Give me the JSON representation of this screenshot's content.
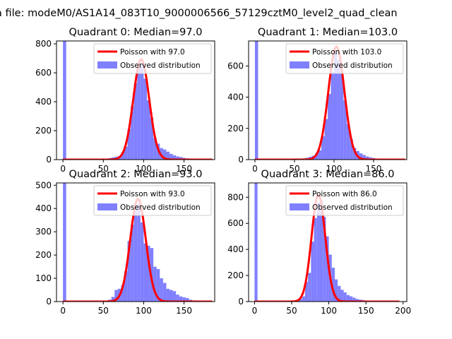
{
  "figure_title": "a file: modeM0/AS1A14_083T10_9000006566_57129cztM0_level2_quad_clean",
  "chart_data": [
    {
      "type": "bar",
      "title": "Quadrant 0: Median=97.0",
      "median": 97.0,
      "xlim": [
        -8,
        188
      ],
      "ylim": [
        0,
        820
      ],
      "xticks": [
        0,
        50,
        100,
        150
      ],
      "yticks": [
        0,
        200,
        400,
        600,
        800
      ],
      "bin_width": 4,
      "zero_spike": 820,
      "bins": [
        [
          56,
          10
        ],
        [
          60,
          15
        ],
        [
          64,
          20
        ],
        [
          68,
          25
        ],
        [
          72,
          50
        ],
        [
          76,
          90
        ],
        [
          80,
          210
        ],
        [
          84,
          370
        ],
        [
          88,
          530
        ],
        [
          92,
          650
        ],
        [
          96,
          660
        ],
        [
          100,
          560
        ],
        [
          104,
          410
        ],
        [
          108,
          290
        ],
        [
          112,
          150
        ],
        [
          116,
          110
        ],
        [
          120,
          80
        ],
        [
          124,
          70
        ],
        [
          128,
          55
        ],
        [
          132,
          40
        ],
        [
          136,
          30
        ],
        [
          140,
          22
        ],
        [
          144,
          18
        ],
        [
          148,
          12
        ],
        [
          152,
          9
        ],
        [
          156,
          7
        ],
        [
          160,
          5
        ],
        [
          164,
          4
        ],
        [
          168,
          3
        ]
      ],
      "poisson_range": [
        0,
        185
      ],
      "legend": {
        "line_label": "Poisson with 97.0",
        "bar_label": "Observed distribution",
        "loc": "upper right"
      },
      "colors": {
        "bars": "#8080ff",
        "line": "#ff0000"
      }
    },
    {
      "type": "bar",
      "title": "Quadrant 1: Median=103.0",
      "median": 103.0,
      "xlim": [
        -8,
        192
      ],
      "ylim": [
        0,
        760
      ],
      "xticks": [
        0,
        50,
        100,
        150
      ],
      "yticks": [
        0,
        200,
        400,
        600
      ],
      "bin_width": 4,
      "zero_spike": 760,
      "bins": [
        [
          60,
          8
        ],
        [
          64,
          12
        ],
        [
          68,
          18
        ],
        [
          72,
          25
        ],
        [
          76,
          40
        ],
        [
          80,
          60
        ],
        [
          84,
          150
        ],
        [
          88,
          260
        ],
        [
          92,
          420
        ],
        [
          96,
          560
        ],
        [
          100,
          690
        ],
        [
          104,
          640
        ],
        [
          108,
          560
        ],
        [
          112,
          380
        ],
        [
          116,
          230
        ],
        [
          120,
          130
        ],
        [
          124,
          75
        ],
        [
          128,
          55
        ],
        [
          132,
          40
        ],
        [
          136,
          30
        ],
        [
          140,
          20
        ],
        [
          144,
          15
        ],
        [
          148,
          10
        ],
        [
          152,
          7
        ],
        [
          156,
          5
        ],
        [
          160,
          4
        ],
        [
          164,
          3
        ]
      ],
      "poisson_range": [
        0,
        190
      ],
      "legend": {
        "line_label": "Poisson with 103.0",
        "bar_label": "Observed distribution",
        "loc": "upper right"
      },
      "colors": {
        "bars": "#8080ff",
        "line": "#ff0000"
      }
    },
    {
      "type": "bar",
      "title": "Quadrant 2: Median=93.0",
      "median": 93.0,
      "xlim": [
        -8,
        188
      ],
      "ylim": [
        0,
        510
      ],
      "xticks": [
        0,
        50,
        100,
        150
      ],
      "yticks": [
        0,
        100,
        200,
        300,
        400,
        500
      ],
      "bin_width": 4,
      "zero_spike": 510,
      "bins": [
        [
          56,
          8
        ],
        [
          60,
          20
        ],
        [
          64,
          50
        ],
        [
          68,
          55
        ],
        [
          72,
          70
        ],
        [
          76,
          130
        ],
        [
          80,
          260
        ],
        [
          84,
          330
        ],
        [
          88,
          410
        ],
        [
          92,
          420
        ],
        [
          96,
          340
        ],
        [
          100,
          250
        ],
        [
          104,
          240
        ],
        [
          108,
          230
        ],
        [
          112,
          150
        ],
        [
          116,
          140
        ],
        [
          120,
          100
        ],
        [
          124,
          80
        ],
        [
          128,
          55
        ],
        [
          132,
          50
        ],
        [
          136,
          45
        ],
        [
          140,
          30
        ],
        [
          144,
          22
        ],
        [
          148,
          18
        ],
        [
          152,
          15
        ],
        [
          156,
          8
        ],
        [
          160,
          5
        ],
        [
          164,
          3
        ]
      ],
      "poisson_range": [
        0,
        185
      ],
      "legend": {
        "line_label": "Poisson with 93.0",
        "bar_label": "Observed distribution",
        "loc": "upper right"
      },
      "colors": {
        "bars": "#8080ff",
        "line": "#ff0000"
      }
    },
    {
      "type": "bar",
      "title": "Quadrant 3: Median=86.0",
      "median": 86.0,
      "xlim": [
        -8,
        205
      ],
      "ylim": [
        0,
        910
      ],
      "xticks": [
        0,
        50,
        100,
        150,
        200
      ],
      "yticks": [
        0,
        200,
        400,
        600,
        800
      ],
      "bin_width": 4,
      "zero_spike": 910,
      "bins": [
        [
          56,
          10
        ],
        [
          60,
          20
        ],
        [
          64,
          40
        ],
        [
          68,
          150
        ],
        [
          72,
          220
        ],
        [
          76,
          460
        ],
        [
          80,
          640
        ],
        [
          84,
          760
        ],
        [
          88,
          780
        ],
        [
          92,
          650
        ],
        [
          96,
          500
        ],
        [
          100,
          360
        ],
        [
          104,
          260
        ],
        [
          108,
          170
        ],
        [
          112,
          120
        ],
        [
          116,
          90
        ],
        [
          120,
          70
        ],
        [
          124,
          50
        ],
        [
          128,
          40
        ],
        [
          132,
          30
        ],
        [
          136,
          20
        ],
        [
          140,
          15
        ],
        [
          144,
          12
        ],
        [
          148,
          8
        ],
        [
          152,
          6
        ],
        [
          156,
          4
        ],
        [
          160,
          3
        ],
        [
          164,
          2
        ]
      ],
      "poisson_range": [
        0,
        195
      ],
      "legend": {
        "line_label": "Poisson with 86.0",
        "bar_label": "Observed distribution",
        "loc": "upper right"
      },
      "colors": {
        "bars": "#8080ff",
        "line": "#ff0000"
      }
    }
  ]
}
